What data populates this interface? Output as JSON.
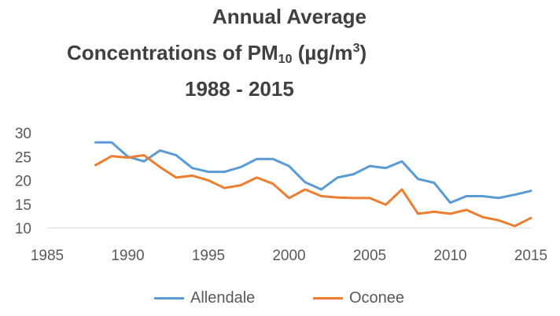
{
  "title_parts": {
    "line1": "Annual Average",
    "line2_prefix": "Concentrations of PM",
    "line2_sub": "10",
    "line2_mid": " (µg/m",
    "line2_sup": "3",
    "line2_suffix": ")",
    "line3": "1988 - 2015"
  },
  "chart_data": {
    "type": "line",
    "title": "Annual Average Concentrations of PM10 (µg/m3) 1988 - 2015",
    "xlabel": "",
    "ylabel": "",
    "xlim": [
      1985,
      2015
    ],
    "ylim": [
      10,
      30
    ],
    "x_ticks": [
      1985,
      1990,
      1995,
      2000,
      2005,
      2010,
      2015
    ],
    "y_ticks": [
      10,
      15,
      20,
      25,
      30
    ],
    "grid": false,
    "legend_position": "bottom",
    "x": [
      1988,
      1989,
      1990,
      1991,
      1992,
      1993,
      1994,
      1995,
      1996,
      1997,
      1998,
      1999,
      2000,
      2001,
      2002,
      2003,
      2004,
      2005,
      2006,
      2007,
      2008,
      2009,
      2010,
      2011,
      2012,
      2013,
      2014,
      2015
    ],
    "series": [
      {
        "name": "Allendale",
        "color": "#5b9bd5",
        "values": [
          28,
          28,
          25,
          24,
          26.3,
          25.3,
          22.6,
          21.8,
          21.8,
          22.8,
          24.5,
          24.5,
          23,
          19.6,
          18.1,
          20.6,
          21.3,
          23,
          22.6,
          24,
          20.3,
          19.5,
          15.3,
          16.7,
          16.7,
          16.3,
          17,
          17.8
        ]
      },
      {
        "name": "Oconee",
        "color": "#ed7d31",
        "values": [
          23.2,
          25.1,
          24.8,
          25.3,
          22.8,
          20.6,
          21,
          20,
          18.4,
          19,
          20.6,
          19.3,
          16.3,
          18.1,
          16.7,
          16.4,
          16.3,
          16.3,
          14.9,
          18.1,
          13,
          13.4,
          13,
          13.8,
          12.3,
          11.6,
          10.4,
          12.1
        ]
      }
    ]
  }
}
